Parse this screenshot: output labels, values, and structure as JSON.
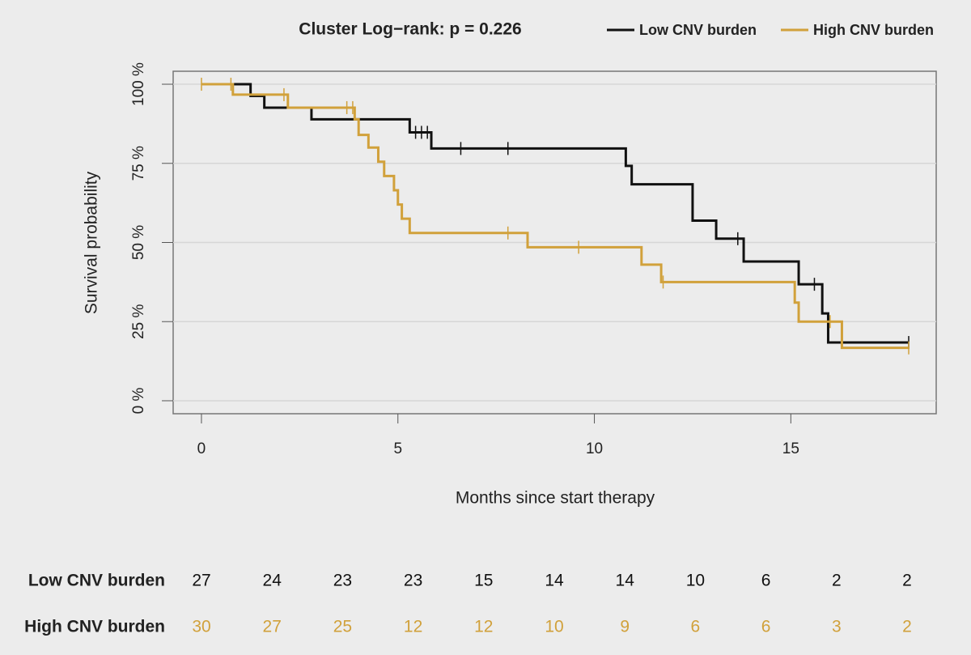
{
  "chart_data": {
    "type": "km",
    "title": "Cluster  Log−rank:  p = 0.226",
    "xlabel": "Months since start therapy",
    "ylabel": "Survival probability",
    "xlim": [
      -0.72,
      18.7
    ],
    "ylim": [
      -4.1,
      104.1
    ],
    "xticks": [
      0,
      5,
      10,
      15
    ],
    "yticks": [
      {
        "value": 0,
        "label": "0 %"
      },
      {
        "value": 25,
        "label": "25 %"
      },
      {
        "value": 50,
        "label": "50 %"
      },
      {
        "value": 75,
        "label": "75 %"
      },
      {
        "value": 100,
        "label": "100 %"
      }
    ],
    "grid": true,
    "legend": "top-right",
    "series": [
      {
        "name": "Low CNV burden",
        "color": "#111111",
        "x": [
          0,
          1.25,
          1.6,
          2.8,
          5.3,
          5.85,
          10.8,
          10.95,
          12.5,
          13.1,
          13.8,
          15.2,
          15.8,
          15.95,
          18.0
        ],
        "values": [
          100,
          96.3,
          92.6,
          88.9,
          84.8,
          79.7,
          74.2,
          68.4,
          56.9,
          51.2,
          44,
          36.8,
          27.6,
          18.4,
          18.4
        ],
        "censor_x": [
          5.45,
          5.6,
          5.75,
          6.6,
          7.8,
          13.65,
          15.6,
          18.0
        ],
        "censor_y": [
          84.8,
          84.8,
          84.8,
          79.7,
          79.7,
          51.2,
          36.8,
          18.4
        ]
      },
      {
        "name": "High CNV burden",
        "color": "#d1a13b",
        "x": [
          0,
          0.8,
          2.2,
          3.9,
          4.0,
          4.25,
          4.5,
          4.65,
          4.9,
          5.0,
          5.1,
          5.3,
          8.3,
          11.2,
          11.7,
          15.1,
          15.2,
          16.3,
          18.0
        ],
        "values": [
          100,
          96.7,
          92.6,
          88.9,
          84,
          80,
          75.5,
          71,
          66.5,
          62,
          57.5,
          53,
          48.5,
          43,
          37.5,
          31,
          25,
          16.7,
          16.7
        ],
        "censor_x": [
          0,
          0.75,
          2.1,
          3.7,
          3.85,
          7.8,
          9.6,
          11.75,
          16.0,
          18.0
        ],
        "censor_y": [
          100,
          100,
          96.7,
          92.6,
          92.6,
          53,
          48.5,
          37.5,
          25,
          16.7
        ]
      }
    ],
    "risk_table": [
      {
        "name": "Low CNV burden",
        "values": [
          27,
          24,
          23,
          23,
          15,
          14,
          14,
          10,
          6,
          2,
          2
        ]
      },
      {
        "name": "High CNV burden",
        "values": [
          30,
          27,
          25,
          12,
          12,
          10,
          9,
          6,
          6,
          3,
          2
        ]
      }
    ]
  }
}
